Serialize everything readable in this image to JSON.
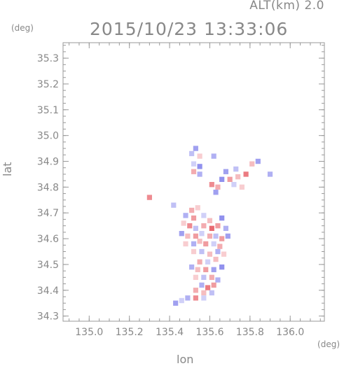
{
  "header": {
    "altitude_label": "ALT(km)  2.0",
    "timestamp": "2015/10/23 13:33:06"
  },
  "chart_data": {
    "type": "heatmap",
    "title": "2015/10/23 13:33:06",
    "xlabel": "lon",
    "ylabel": "lat",
    "x_unit": "(deg)",
    "y_unit": "(deg)",
    "xlim": [
      134.87,
      136.17
    ],
    "ylim": [
      34.28,
      35.36
    ],
    "x_ticks": [
      135.0,
      135.2,
      135.4,
      135.6,
      135.8,
      136.0
    ],
    "x_tick_labels": [
      "135.0",
      "135.2",
      "135.4",
      "135.6",
      "135.8",
      "136.0"
    ],
    "y_ticks": [
      34.3,
      34.4,
      34.5,
      34.6,
      34.7,
      34.8,
      34.9,
      35.0,
      35.1,
      35.2,
      35.3
    ],
    "y_tick_labels": [
      "34.3",
      "34.4",
      "34.5",
      "34.6",
      "34.7",
      "34.8",
      "34.9",
      "35.0",
      "35.1",
      "35.2",
      "35.3"
    ],
    "grid": false,
    "colors": {
      "positive": "#e0303a",
      "negative": "#3a3ae0",
      "neutral": "#ffffff"
    },
    "cells": [
      {
        "lon": 135.53,
        "lat": 34.95,
        "v": -0.6
      },
      {
        "lon": 135.51,
        "lat": 34.93,
        "v": -0.4
      },
      {
        "lon": 135.55,
        "lat": 34.92,
        "v": 0.3
      },
      {
        "lon": 135.62,
        "lat": 34.92,
        "v": -0.5
      },
      {
        "lon": 135.52,
        "lat": 34.89,
        "v": -0.3
      },
      {
        "lon": 135.55,
        "lat": 34.88,
        "v": -0.7
      },
      {
        "lon": 135.81,
        "lat": 34.89,
        "v": 0.4
      },
      {
        "lon": 135.84,
        "lat": 34.9,
        "v": -0.6
      },
      {
        "lon": 135.52,
        "lat": 34.86,
        "v": 0.5
      },
      {
        "lon": 135.55,
        "lat": 34.85,
        "v": -0.5
      },
      {
        "lon": 135.68,
        "lat": 34.86,
        "v": -0.6
      },
      {
        "lon": 135.73,
        "lat": 34.87,
        "v": -0.4
      },
      {
        "lon": 135.66,
        "lat": 34.83,
        "v": -0.7
      },
      {
        "lon": 135.7,
        "lat": 34.83,
        "v": 0.6
      },
      {
        "lon": 135.74,
        "lat": 34.84,
        "v": 0.4
      },
      {
        "lon": 135.78,
        "lat": 34.85,
        "v": 0.8
      },
      {
        "lon": 135.9,
        "lat": 34.85,
        "v": -0.5
      },
      {
        "lon": 135.61,
        "lat": 34.81,
        "v": 0.7
      },
      {
        "lon": 135.64,
        "lat": 34.8,
        "v": 0.5
      },
      {
        "lon": 135.72,
        "lat": 34.81,
        "v": -0.3
      },
      {
        "lon": 135.76,
        "lat": 34.8,
        "v": 0.3
      },
      {
        "lon": 135.63,
        "lat": 34.78,
        "v": -0.6
      },
      {
        "lon": 135.3,
        "lat": 34.76,
        "v": 0.7
      },
      {
        "lon": 135.42,
        "lat": 34.73,
        "v": -0.4
      },
      {
        "lon": 135.51,
        "lat": 34.71,
        "v": 0.5
      },
      {
        "lon": 135.54,
        "lat": 34.72,
        "v": 0.3
      },
      {
        "lon": 135.48,
        "lat": 34.69,
        "v": -0.5
      },
      {
        "lon": 135.52,
        "lat": 34.68,
        "v": 0.6
      },
      {
        "lon": 135.57,
        "lat": 34.69,
        "v": -0.3
      },
      {
        "lon": 135.6,
        "lat": 34.67,
        "v": 0.4
      },
      {
        "lon": 135.66,
        "lat": 34.68,
        "v": -0.7
      },
      {
        "lon": 135.47,
        "lat": 34.66,
        "v": 0.3
      },
      {
        "lon": 135.5,
        "lat": 34.65,
        "v": 0.7
      },
      {
        "lon": 135.53,
        "lat": 34.64,
        "v": -0.4
      },
      {
        "lon": 135.57,
        "lat": 34.65,
        "v": 0.5
      },
      {
        "lon": 135.61,
        "lat": 34.64,
        "v": 0.9
      },
      {
        "lon": 135.64,
        "lat": 34.65,
        "v": 0.6
      },
      {
        "lon": 135.68,
        "lat": 34.64,
        "v": -0.5
      },
      {
        "lon": 135.46,
        "lat": 34.62,
        "v": -0.6
      },
      {
        "lon": 135.49,
        "lat": 34.61,
        "v": 0.4
      },
      {
        "lon": 135.53,
        "lat": 34.61,
        "v": 0.6
      },
      {
        "lon": 135.56,
        "lat": 34.62,
        "v": -0.3
      },
      {
        "lon": 135.6,
        "lat": 34.61,
        "v": 0.5
      },
      {
        "lon": 135.63,
        "lat": 34.61,
        "v": -0.4
      },
      {
        "lon": 135.66,
        "lat": 34.6,
        "v": 0.6
      },
      {
        "lon": 135.69,
        "lat": 34.61,
        "v": -0.6
      },
      {
        "lon": 135.48,
        "lat": 34.58,
        "v": 0.3
      },
      {
        "lon": 135.52,
        "lat": 34.58,
        "v": -0.5
      },
      {
        "lon": 135.55,
        "lat": 34.59,
        "v": 0.4
      },
      {
        "lon": 135.58,
        "lat": 34.58,
        "v": 0.6
      },
      {
        "lon": 135.62,
        "lat": 34.58,
        "v": -0.3
      },
      {
        "lon": 135.65,
        "lat": 34.57,
        "v": 0.5
      },
      {
        "lon": 135.52,
        "lat": 34.55,
        "v": 0.3
      },
      {
        "lon": 135.56,
        "lat": 34.55,
        "v": -0.4
      },
      {
        "lon": 135.6,
        "lat": 34.54,
        "v": 0.4
      },
      {
        "lon": 135.64,
        "lat": 34.55,
        "v": -0.5
      },
      {
        "lon": 135.67,
        "lat": 34.54,
        "v": 0.3
      },
      {
        "lon": 135.55,
        "lat": 34.51,
        "v": 0.5
      },
      {
        "lon": 135.59,
        "lat": 34.51,
        "v": -0.3
      },
      {
        "lon": 135.63,
        "lat": 34.52,
        "v": 0.4
      },
      {
        "lon": 135.51,
        "lat": 34.49,
        "v": -0.5
      },
      {
        "lon": 135.54,
        "lat": 34.48,
        "v": 0.4
      },
      {
        "lon": 135.58,
        "lat": 34.48,
        "v": 0.6
      },
      {
        "lon": 135.62,
        "lat": 34.48,
        "v": -0.6
      },
      {
        "lon": 135.66,
        "lat": 34.49,
        "v": -0.7
      },
      {
        "lon": 135.53,
        "lat": 34.45,
        "v": 0.3
      },
      {
        "lon": 135.57,
        "lat": 34.45,
        "v": -0.4
      },
      {
        "lon": 135.61,
        "lat": 34.45,
        "v": 0.5
      },
      {
        "lon": 135.64,
        "lat": 34.44,
        "v": -0.5
      },
      {
        "lon": 135.56,
        "lat": 34.42,
        "v": -0.5
      },
      {
        "lon": 135.59,
        "lat": 34.41,
        "v": 0.8
      },
      {
        "lon": 135.62,
        "lat": 34.42,
        "v": 0.6
      },
      {
        "lon": 135.53,
        "lat": 34.4,
        "v": 0.5
      },
      {
        "lon": 135.57,
        "lat": 34.39,
        "v": 0.4
      },
      {
        "lon": 135.61,
        "lat": 34.39,
        "v": -0.4
      },
      {
        "lon": 135.49,
        "lat": 34.37,
        "v": -0.5
      },
      {
        "lon": 135.53,
        "lat": 34.37,
        "v": 0.7
      },
      {
        "lon": 135.57,
        "lat": 34.37,
        "v": -0.3
      },
      {
        "lon": 135.43,
        "lat": 34.35,
        "v": -0.6
      },
      {
        "lon": 135.46,
        "lat": 34.36,
        "v": -0.3
      }
    ]
  }
}
